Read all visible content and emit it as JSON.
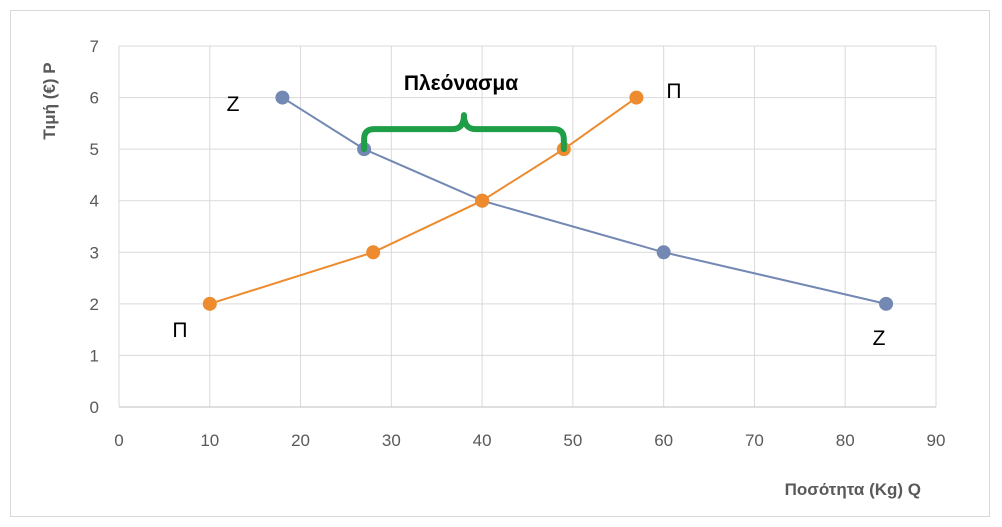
{
  "chart_data": {
    "type": "line",
    "xlabel": "Ποσότητα (Kg) Q",
    "ylabel": "Τιμή (€) P",
    "xlim": [
      0,
      90
    ],
    "ylim": [
      0,
      7
    ],
    "xticks": [
      0,
      10,
      20,
      30,
      40,
      50,
      60,
      70,
      80,
      90
    ],
    "yticks": [
      0,
      1,
      2,
      3,
      4,
      5,
      6,
      7
    ],
    "grid": true,
    "series": [
      {
        "color": "#7388b3",
        "points": [
          {
            "x": 18,
            "y": 6
          },
          {
            "x": 27,
            "y": 5
          },
          {
            "x": 40,
            "y": 4
          },
          {
            "x": 60,
            "y": 3
          },
          {
            "x": 84.5,
            "y": 2
          }
        ]
      },
      {
        "color": "#ed8b2e",
        "points": [
          {
            "x": 10,
            "y": 2
          },
          {
            "x": 28,
            "y": 3
          },
          {
            "x": 40,
            "y": 4
          },
          {
            "x": 49,
            "y": 5
          },
          {
            "x": 57,
            "y": 6
          }
        ]
      }
    ],
    "annotations": {
      "demand_label_top": "Ζ",
      "demand_label_bottom": "Ζ",
      "supply_label_top": "Π",
      "supply_label_bottom": "Π",
      "surplus_label": "Πλεόνασμα",
      "surplus_range": {
        "x_start": 27,
        "x_end": 49,
        "y": 5
      },
      "brace_color": "#1e9e47"
    }
  }
}
